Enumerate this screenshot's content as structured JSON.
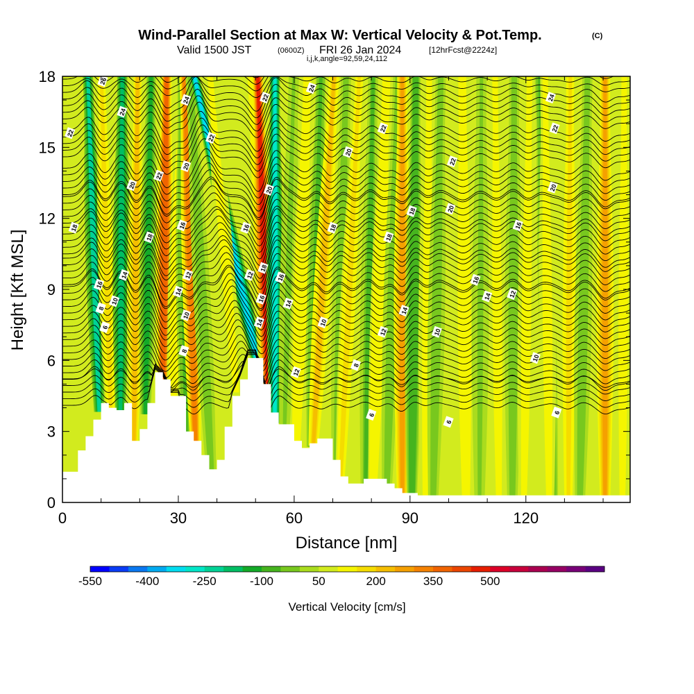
{
  "chart_data": {
    "type": "heatmap",
    "title": "Wind-Parallel Section at Max W: Vertical Velocity & Pot.Temp.",
    "copyright": "(C)",
    "subtitle_main": "Valid 1500 JST",
    "subtitle_utc": "(0600Z)",
    "subtitle_date": "FRI 26 Jan 2024",
    "subtitle_fcst": "[12hrFcst@2224z]",
    "subtitle_indices": "i,j,k,angle=92,59,24,112",
    "xlabel": "Distance [nm]",
    "ylabel": "Height [Kft MSL]",
    "xlim": [
      0,
      147
    ],
    "ylim": [
      0,
      18
    ],
    "x_ticks": [
      "0",
      "30",
      "60",
      "90",
      "120"
    ],
    "y_ticks": [
      "0",
      "3",
      "6",
      "9",
      "12",
      "15",
      "18"
    ],
    "colorbar": {
      "label": "Vertical Velocity [cm/s]",
      "tick_labels": [
        "-550",
        "-400",
        "-250",
        "-100",
        "50",
        "200",
        "350",
        "500"
      ],
      "colors": [
        "#0000ff",
        "#0a3cf5",
        "#0a78f0",
        "#00aaf0",
        "#00dcf0",
        "#00e6c8",
        "#00d296",
        "#00be64",
        "#14aa28",
        "#46b41e",
        "#78c81e",
        "#aadc1e",
        "#d2eb1e",
        "#f5f500",
        "#f5dc00",
        "#f5be00",
        "#f5a000",
        "#f58200",
        "#f06400",
        "#eb4600",
        "#e61e00",
        "#dc0028",
        "#c8003c",
        "#aa0050",
        "#960064",
        "#780078",
        "#5a0082"
      ]
    },
    "theta_contour_labels": [
      "26",
      "24",
      "22",
      "20",
      "18",
      "16",
      "14",
      "12",
      "10",
      "8",
      "6"
    ],
    "terrain_height_kft": {
      "x": [
        0,
        4,
        6,
        8,
        10,
        12,
        14,
        16,
        18,
        20,
        22,
        24,
        26,
        28,
        30,
        32,
        34,
        36,
        38,
        40,
        42,
        44,
        46,
        48,
        50,
        52,
        54,
        56,
        58,
        60,
        62,
        64,
        66,
        68,
        70,
        72,
        74,
        76,
        78,
        80,
        82,
        84,
        86,
        88,
        90,
        92,
        94,
        96,
        100,
        110,
        120,
        130,
        140,
        147
      ],
      "y": [
        1.3,
        2.2,
        2.8,
        3.5,
        4.2,
        4.0,
        3.9,
        4.2,
        2.6,
        3.1,
        4.2,
        5.5,
        5.2,
        4.5,
        4.5,
        3.0,
        2.6,
        2.0,
        1.4,
        1.8,
        3.2,
        4.5,
        5.2,
        6.1,
        6.1,
        5.0,
        3.8,
        3.3,
        3.3,
        2.6,
        2.3,
        2.5,
        2.7,
        2.7,
        1.8,
        1.1,
        0.8,
        0.8,
        1.0,
        1.0,
        1.0,
        0.8,
        0.6,
        0.4,
        0.4,
        0.3,
        0.3,
        0.3,
        0.3,
        0.3,
        0.3,
        0.3,
        0.3,
        0.3
      ]
    },
    "vertical_velocity_bands_cm_s": [
      {
        "x_base": 9.5,
        "x_top": 6.5,
        "w": -260
      },
      {
        "x_base": 12.5,
        "x_top": 10.0,
        "w": 120
      },
      {
        "x_base": 15.0,
        "x_top": 15.5,
        "w": -240
      },
      {
        "x_base": 18.5,
        "x_top": 19.5,
        "w": 160
      },
      {
        "x_base": 21.5,
        "x_top": 23.0,
        "w": -200
      },
      {
        "x_base": 26.0,
        "x_top": 27.0,
        "w": 330
      },
      {
        "x_base": 28.5,
        "x_top": 31.5,
        "w": 90
      },
      {
        "x_base": 32.0,
        "x_top": 31.0,
        "w": -120
      },
      {
        "x_base": 34.5,
        "x_top": 31.5,
        "w": 280
      },
      {
        "x_base": 38.5,
        "x_top": 33.0,
        "w": -90
      },
      {
        "x_base": 52.5,
        "x_top": 33.5,
        "w": -380
      },
      {
        "x_base": 45.0,
        "x_top": 38.0,
        "w": 80
      },
      {
        "x_base": 53.0,
        "x_top": 48.5,
        "w": 80
      },
      {
        "x_base": 53.5,
        "x_top": 50.5,
        "w": 400
      },
      {
        "x_base": 55.0,
        "x_top": 55.0,
        "w": -320
      },
      {
        "x_base": 57.5,
        "x_top": 60.0,
        "w": -60
      },
      {
        "x_base": 60.5,
        "x_top": 63.5,
        "w": 90
      },
      {
        "x_base": 64.5,
        "x_top": 67.0,
        "w": -120
      },
      {
        "x_base": 65.0,
        "x_top": 70.5,
        "w": 170
      },
      {
        "x_base": 71.0,
        "x_top": 73.5,
        "w": -90
      },
      {
        "x_base": 72.0,
        "x_top": 77.0,
        "w": 100
      },
      {
        "x_base": 78.5,
        "x_top": 80.5,
        "w": -110
      },
      {
        "x_base": 80.5,
        "x_top": 84.0,
        "w": 90
      },
      {
        "x_base": 84.0,
        "x_top": 87.0,
        "w": -90
      },
      {
        "x_base": 88.0,
        "x_top": 88.0,
        "w": 200
      },
      {
        "x_base": 90.5,
        "x_top": 91.5,
        "w": -140
      },
      {
        "x_base": 94.0,
        "x_top": 95.0,
        "w": 70
      },
      {
        "x_base": 96.0,
        "x_top": 98.0,
        "w": -90
      },
      {
        "x_base": 104.5,
        "x_top": 103.5,
        "w": 90
      },
      {
        "x_base": 108.0,
        "x_top": 108.5,
        "w": -70
      },
      {
        "x_base": 113.0,
        "x_top": 112.0,
        "w": 70
      },
      {
        "x_base": 116.5,
        "x_top": 117.0,
        "w": -100
      },
      {
        "x_base": 119.5,
        "x_top": 121.0,
        "w": 80
      },
      {
        "x_base": 127.0,
        "x_top": 123.5,
        "w": -120
      },
      {
        "x_base": 126.0,
        "x_top": 125.0,
        "w": 80
      },
      {
        "x_base": 131.0,
        "x_top": 131.5,
        "w": 100
      },
      {
        "x_base": 134.0,
        "x_top": 136.0,
        "w": -80
      },
      {
        "x_base": 140.5,
        "x_top": 140.5,
        "w": 200
      },
      {
        "x_base": 145.0,
        "x_top": 145.5,
        "w": 80
      }
    ],
    "background_w_cm_s": 10,
    "theta_contours": [
      {
        "label": "6",
        "y_base": 4.1,
        "amp": 0.7,
        "tlab": [
          {
            "x": 11,
            "y": 7.4
          },
          {
            "x": 100,
            "y": 3.4
          },
          {
            "x": 128,
            "y": 3.8
          },
          {
            "x": 80,
            "y": 3.7
          }
        ]
      },
      {
        "label": "8",
        "y_base": 5.2,
        "amp": 0.9,
        "tlab": [
          {
            "x": 10,
            "y": 8.2
          },
          {
            "x": 31.5,
            "y": 6.4
          },
          {
            "x": 76,
            "y": 5.8
          }
        ]
      },
      {
        "label": "10",
        "y_base": 6.6,
        "amp": 1.0,
        "tlab": [
          {
            "x": 13.5,
            "y": 8.5
          },
          {
            "x": 32,
            "y": 7.9
          },
          {
            "x": 67.5,
            "y": 7.6
          },
          {
            "x": 97,
            "y": 7.2
          },
          {
            "x": 122.5,
            "y": 6.1
          }
        ]
      },
      {
        "label": "12",
        "y_base": 8.0,
        "amp": 1.1,
        "tlab": [
          {
            "x": 32.5,
            "y": 9.6
          },
          {
            "x": 48.5,
            "y": 9.6
          },
          {
            "x": 60.5,
            "y": 5.5
          },
          {
            "x": 83,
            "y": 7.2
          },
          {
            "x": 116.5,
            "y": 8.8
          }
        ]
      },
      {
        "label": "14",
        "y_base": 9.2,
        "amp": 1.1,
        "tlab": [
          {
            "x": 16,
            "y": 9.6
          },
          {
            "x": 30,
            "y": 8.9
          },
          {
            "x": 51,
            "y": 7.6
          },
          {
            "x": 58.5,
            "y": 8.4
          },
          {
            "x": 88.5,
            "y": 8.1
          },
          {
            "x": 110,
            "y": 8.7
          }
        ]
      },
      {
        "label": "16",
        "y_base": 10.5,
        "amp": 1.1,
        "tlab": [
          {
            "x": 9.5,
            "y": 9.2
          },
          {
            "x": 31,
            "y": 11.7
          },
          {
            "x": 47.5,
            "y": 11.6
          },
          {
            "x": 51.5,
            "y": 8.6
          },
          {
            "x": 56.5,
            "y": 9.5
          },
          {
            "x": 107,
            "y": 9.4
          },
          {
            "x": 118,
            "y": 11.7
          }
        ]
      },
      {
        "label": "18",
        "y_base": 11.8,
        "amp": 1.0,
        "tlab": [
          {
            "x": 3,
            "y": 11.6
          },
          {
            "x": 22.5,
            "y": 11.2
          },
          {
            "x": 52,
            "y": 9.9
          },
          {
            "x": 70,
            "y": 11.6
          },
          {
            "x": 84.5,
            "y": 11.2
          },
          {
            "x": 90.5,
            "y": 12.3
          }
        ]
      },
      {
        "label": "20",
        "y_base": 13.0,
        "amp": 1.0,
        "tlab": [
          {
            "x": 18,
            "y": 13.4
          },
          {
            "x": 32,
            "y": 14.2
          },
          {
            "x": 53.5,
            "y": 13.2
          },
          {
            "x": 74,
            "y": 14.8
          },
          {
            "x": 100.5,
            "y": 12.4
          },
          {
            "x": 127,
            "y": 13.3
          }
        ]
      },
      {
        "label": "22",
        "y_base": 14.6,
        "amp": 0.9,
        "tlab": [
          {
            "x": 2,
            "y": 15.6
          },
          {
            "x": 25,
            "y": 13.8
          },
          {
            "x": 38.5,
            "y": 15.4
          },
          {
            "x": 52.5,
            "y": 17.1
          },
          {
            "x": 83,
            "y": 15.8
          },
          {
            "x": 101,
            "y": 14.4
          },
          {
            "x": 127.5,
            "y": 15.8
          }
        ]
      },
      {
        "label": "24",
        "y_base": 16.2,
        "amp": 0.8,
        "tlab": [
          {
            "x": 15.5,
            "y": 16.5
          },
          {
            "x": 32,
            "y": 17.0
          },
          {
            "x": 64.5,
            "y": 17.5
          },
          {
            "x": 126.5,
            "y": 17.1
          }
        ]
      },
      {
        "label": "26",
        "y_base": 17.6,
        "amp": 0.5,
        "tlab": [
          {
            "x": 10.5,
            "y": 17.8
          }
        ]
      }
    ]
  }
}
